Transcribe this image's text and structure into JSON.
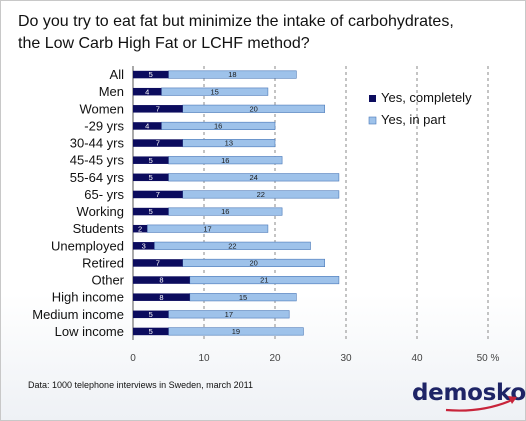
{
  "title_lines": [
    "Do you try to eat fat but minimize the intake of carbohydrates,",
    "the Low Carb High Fat or LCHF method?"
  ],
  "source": "Data: 1000 telephone interviews in Sweden, march 2011",
  "logo": "demoskop",
  "colors": {
    "completely": "#0c0c5e",
    "in_part": "#9ec2ea",
    "in_part_stroke": "#4a78b8",
    "grid": "#8a8a8a",
    "logo": "#1e2466",
    "logo_swoosh": "#c8243a"
  },
  "chart_data": {
    "type": "bar",
    "orientation": "horizontal",
    "stacked": true,
    "categories": [
      "All",
      "Men",
      "Women",
      "-29 yrs",
      "30-44 yrs",
      "45-45 yrs",
      "55-64 yrs",
      "65- yrs",
      "Working",
      "Students",
      "Unemployed",
      "Retired",
      "Other",
      "High income",
      "Medium income",
      "Low income"
    ],
    "series": [
      {
        "name": "Yes, completely",
        "values": [
          5,
          4,
          7,
          4,
          7,
          5,
          5,
          7,
          5,
          2,
          3,
          7,
          8,
          8,
          5,
          5
        ]
      },
      {
        "name": "Yes, in part",
        "values": [
          18,
          15,
          20,
          16,
          13,
          16,
          24,
          22,
          16,
          17,
          22,
          20,
          21,
          15,
          17,
          19
        ]
      }
    ],
    "xlim": [
      0,
      50
    ],
    "ticks": [
      0,
      10,
      20,
      30,
      40,
      50
    ],
    "tick_labels": [
      "0",
      "10",
      "20",
      "30",
      "40",
      "50 %"
    ],
    "grid": "vertical dashed",
    "legend": "right"
  }
}
